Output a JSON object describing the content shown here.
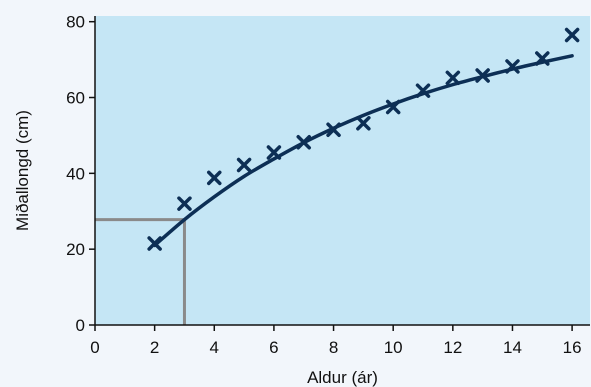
{
  "chart_data": {
    "type": "scatter",
    "xlabel": "Aldur (ár)",
    "ylabel": "Miðallongd (cm)",
    "xlim": [
      0,
      16.6
    ],
    "ylim": [
      0,
      81.5
    ],
    "x_ticks": [
      0,
      2,
      4,
      6,
      8,
      10,
      12,
      14,
      16
    ],
    "y_ticks": [
      0,
      20,
      40,
      60,
      80
    ],
    "grid": false,
    "colors": {
      "plot_background": "#c5e6f5",
      "page_background": "#f2f6fb",
      "marker": "#0d2f55",
      "curve": "#0d2f55",
      "reference_lines": "#8a8a8a"
    },
    "series": [
      {
        "marker": "x",
        "points": [
          [
            2,
            21.5
          ],
          [
            3,
            32
          ],
          [
            4,
            38.8
          ],
          [
            5,
            42.2
          ],
          [
            6,
            45.5
          ],
          [
            7,
            48.2
          ],
          [
            8,
            51.5
          ],
          [
            9,
            53.2
          ],
          [
            10,
            57.5
          ],
          [
            11,
            61.8
          ],
          [
            12,
            65.2
          ],
          [
            13,
            65.8
          ],
          [
            14,
            68.2
          ],
          [
            15,
            70.3
          ],
          [
            16,
            76.5
          ]
        ]
      }
    ],
    "fit_curve": {
      "x": [
        2,
        3,
        4,
        5,
        6,
        7,
        8,
        9,
        10,
        11,
        12,
        13,
        14,
        15,
        16
      ],
      "y": [
        21,
        27.8,
        33.8,
        39.2,
        43.8,
        48.1,
        51.9,
        55.3,
        58.3,
        61,
        63.4,
        65.5,
        67.5,
        69.3,
        71
      ]
    },
    "reference_lines": {
      "x": 3,
      "y": 27.8
    }
  }
}
